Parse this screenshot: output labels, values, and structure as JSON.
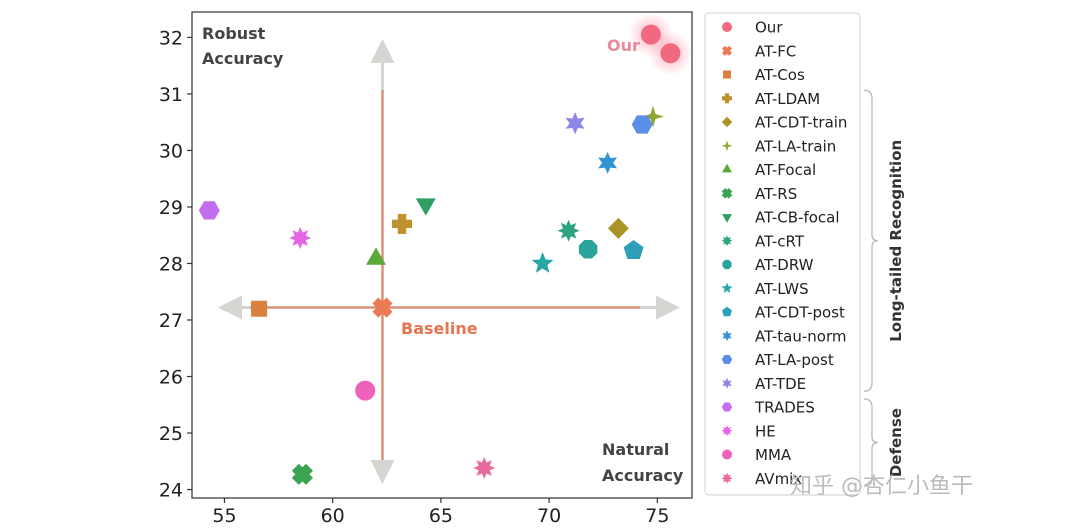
{
  "chart_data": {
    "type": "scatter",
    "title": "",
    "xlabel": "",
    "ylabel": "",
    "xlim": [
      53.5,
      76.6
    ],
    "ylim": [
      23.85,
      32.45
    ],
    "xticks": [
      55,
      60,
      65,
      70,
      75
    ],
    "yticks": [
      24,
      25,
      26,
      27,
      28,
      29,
      30,
      31,
      32
    ],
    "corner_labels": {
      "top_left": [
        "Robust",
        "Accuracy"
      ],
      "bottom_right": [
        "Natural",
        "Accuracy"
      ]
    },
    "baseline": {
      "label": "Baseline",
      "x": 62.3,
      "y": 27.22,
      "color": "#e8734f"
    },
    "our_label": "Our",
    "series": [
      {
        "name": "Our",
        "color": "#f0697f",
        "marker": "circle",
        "points": [
          [
            74.7,
            32.05
          ],
          [
            75.6,
            31.72
          ]
        ]
      },
      {
        "name": "AT-FC",
        "color": "#ec7a55",
        "marker": "x",
        "points": [
          [
            62.3,
            27.22
          ]
        ]
      },
      {
        "name": "AT-Cos",
        "color": "#d9823f",
        "marker": "square",
        "points": [
          [
            56.6,
            27.2
          ]
        ]
      },
      {
        "name": "AT-LDAM",
        "color": "#c0912e",
        "marker": "plus",
        "points": [
          [
            63.2,
            28.7
          ]
        ]
      },
      {
        "name": "AT-CDT-train",
        "color": "#aa9428",
        "marker": "diamond",
        "points": [
          [
            73.2,
            28.62
          ]
        ]
      },
      {
        "name": "AT-LA-train",
        "color": "#8ea82f",
        "marker": "star4",
        "points": [
          [
            74.8,
            30.6
          ]
        ]
      },
      {
        "name": "AT-Focal",
        "color": "#58a83a",
        "marker": "triangle-up",
        "points": [
          [
            62.0,
            28.08
          ]
        ]
      },
      {
        "name": "AT-RS",
        "color": "#3aa452",
        "marker": "x-filled",
        "points": [
          [
            58.6,
            24.27
          ]
        ]
      },
      {
        "name": "AT-CB-focal",
        "color": "#2e9f63",
        "marker": "triangle-down",
        "points": [
          [
            64.3,
            29.05
          ]
        ]
      },
      {
        "name": "AT-cRT",
        "color": "#2ea382",
        "marker": "star8",
        "points": [
          [
            70.9,
            28.58
          ]
        ]
      },
      {
        "name": "AT-DRW",
        "color": "#2aa39a",
        "marker": "octagon",
        "points": [
          [
            71.8,
            28.25
          ]
        ]
      },
      {
        "name": "AT-LWS",
        "color": "#27a6a8",
        "marker": "star5",
        "points": [
          [
            69.7,
            28.0
          ]
        ]
      },
      {
        "name": "AT-CDT-post",
        "color": "#2d9fb8",
        "marker": "pentagon",
        "points": [
          [
            73.9,
            28.23
          ]
        ]
      },
      {
        "name": "AT-tau-norm",
        "color": "#3394d4",
        "marker": "star6",
        "points": [
          [
            72.7,
            29.78
          ]
        ]
      },
      {
        "name": "AT-LA-post",
        "color": "#5b8ee6",
        "marker": "hexagon",
        "points": [
          [
            74.3,
            30.46
          ]
        ]
      },
      {
        "name": "AT-TDE",
        "color": "#8f86e6",
        "marker": "star6",
        "points": [
          [
            71.2,
            30.48
          ]
        ]
      },
      {
        "name": "TRADES",
        "color": "#c36ef0",
        "marker": "hexagon",
        "points": [
          [
            54.3,
            28.94
          ]
        ]
      },
      {
        "name": "HE",
        "color": "#e466e4",
        "marker": "star8",
        "points": [
          [
            58.5,
            28.45
          ]
        ]
      },
      {
        "name": "MMA",
        "color": "#ee62bd",
        "marker": "circle",
        "points": [
          [
            61.5,
            25.75
          ]
        ]
      },
      {
        "name": "AVmix",
        "color": "#ea6a9e",
        "marker": "star8",
        "points": [
          [
            67.0,
            24.38
          ]
        ]
      }
    ],
    "legend_position": "right",
    "legend_groups": [
      {
        "label": "Long-tailed Recognition",
        "from": "AT-LDAM",
        "to": "AT-TDE"
      },
      {
        "label": "Defense",
        "from": "TRADES",
        "to": "AVmix"
      }
    ]
  },
  "watermark": "知乎 @杏仁小鱼干"
}
